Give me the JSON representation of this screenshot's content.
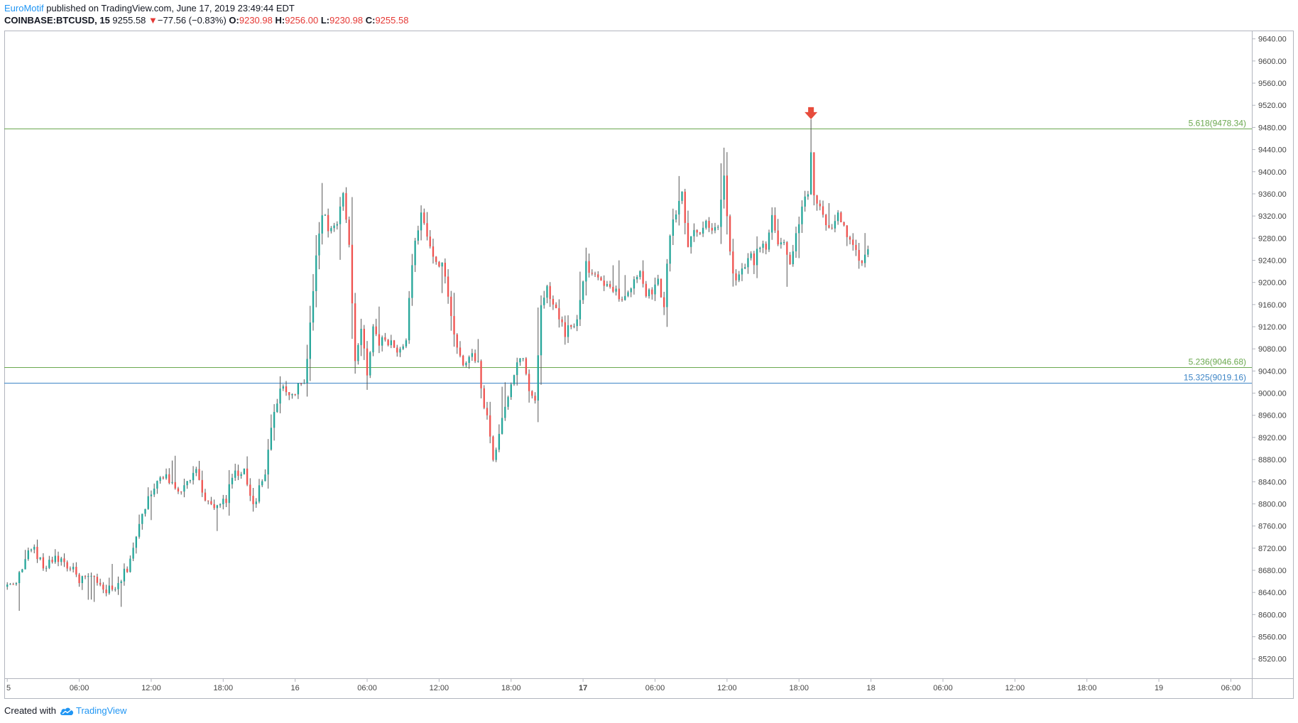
{
  "header": {
    "author": "EuroMotif",
    "published_text": "published on TradingView.com, June 17, 2019 23:49:44 EDT",
    "symbol": "COINBASE:BTCUSD, 15",
    "last_price": "9255.58",
    "change_arrow": "▼",
    "change": "−77.56 (−0.83%)",
    "ohlc": [
      {
        "label": "O:",
        "value": "9230.98"
      },
      {
        "label": "H:",
        "value": "9256.00"
      },
      {
        "label": "L:",
        "value": "9230.98"
      },
      {
        "label": "C:",
        "value": "9255.58"
      }
    ]
  },
  "footer": {
    "created_with": "Created with",
    "brand": "TradingView"
  },
  "colors": {
    "up": "#26a69a",
    "down": "#ef5350",
    "fib_green": "#6aa84f",
    "fib_blue": "#3d85c6",
    "marker": "#e74c3c",
    "grid_border": "#b2b5be",
    "axis_text": "#444444"
  },
  "chart_data": {
    "type": "candlestick",
    "interval_minutes": 15,
    "y_ticks": [
      "8520.00",
      "8560.00",
      "8600.00",
      "8640.00",
      "8680.00",
      "8720.00",
      "8760.00",
      "8800.00",
      "8840.00",
      "8880.00",
      "8920.00",
      "8960.00",
      "9000.00",
      "9040.00",
      "9080.00",
      "9120.00",
      "9160.00",
      "9200.00",
      "9240.00",
      "9280.00",
      "9320.00",
      "9360.00",
      "9400.00",
      "9440.00",
      "9480.00",
      "9520.00",
      "9560.00",
      "9600.00",
      "9640.00"
    ],
    "ylim": [
      8485,
      9655
    ],
    "x_ticks": [
      {
        "label": "5",
        "bar": 0,
        "bold": false
      },
      {
        "label": "06:00",
        "bar": 24,
        "bold": false
      },
      {
        "label": "12:00",
        "bar": 48,
        "bold": false
      },
      {
        "label": "18:00",
        "bar": 72,
        "bold": false
      },
      {
        "label": "16",
        "bar": 96,
        "bold": false
      },
      {
        "label": "06:00",
        "bar": 120,
        "bold": false
      },
      {
        "label": "12:00",
        "bar": 144,
        "bold": false
      },
      {
        "label": "18:00",
        "bar": 168,
        "bold": false
      },
      {
        "label": "17",
        "bar": 192,
        "bold": true
      },
      {
        "label": "06:00",
        "bar": 216,
        "bold": false
      },
      {
        "label": "12:00",
        "bar": 240,
        "bold": false
      },
      {
        "label": "18:00",
        "bar": 264,
        "bold": false
      },
      {
        "label": "18",
        "bar": 288,
        "bold": false
      },
      {
        "label": "06:00",
        "bar": 312,
        "bold": false
      },
      {
        "label": "12:00",
        "bar": 336,
        "bold": false
      },
      {
        "label": "18:00",
        "bar": 360,
        "bold": false
      },
      {
        "label": "19",
        "bar": 384,
        "bold": false
      },
      {
        "label": "06:00",
        "bar": 408,
        "bold": false
      }
    ],
    "x_bar_range": [
      -1,
      415
    ],
    "fib_levels": [
      {
        "label": "5.618(9478.34)",
        "value": 9478.34,
        "color": "#6aa84f"
      },
      {
        "label": "5.236(9046.68)",
        "value": 9046.68,
        "color": "#6aa84f"
      },
      {
        "label": "15.325(9019.16)",
        "value": 9019.16,
        "color": "#3d85c6"
      }
    ],
    "marker": {
      "type": "arrow-down",
      "bar": 268,
      "value": 9505
    },
    "anchors": [
      [
        0,
        8650
      ],
      [
        4,
        8670
      ],
      [
        8,
        8725
      ],
      [
        12,
        8685
      ],
      [
        16,
        8705
      ],
      [
        20,
        8690
      ],
      [
        24,
        8665
      ],
      [
        28,
        8665
      ],
      [
        32,
        8645
      ],
      [
        36,
        8642
      ],
      [
        40,
        8685
      ],
      [
        44,
        8760
      ],
      [
        48,
        8825
      ],
      [
        50,
        8840
      ],
      [
        53,
        8860
      ],
      [
        56,
        8820
      ],
      [
        60,
        8840
      ],
      [
        63,
        8870
      ],
      [
        66,
        8800
      ],
      [
        70,
        8790
      ],
      [
        73,
        8810
      ],
      [
        76,
        8860
      ],
      [
        79,
        8855
      ],
      [
        82,
        8800
      ],
      [
        86,
        8850
      ],
      [
        88,
        8940
      ],
      [
        91,
        9010
      ],
      [
        94,
        8990
      ],
      [
        97,
        9010
      ],
      [
        99,
        9020
      ],
      [
        101,
        9120
      ],
      [
        103,
        9250
      ],
      [
        105,
        9330
      ],
      [
        107,
        9300
      ],
      [
        110,
        9300
      ],
      [
        112,
        9360
      ],
      [
        114,
        9260
      ],
      [
        116,
        9060
      ],
      [
        118,
        9120
      ],
      [
        120,
        9040
      ],
      [
        122,
        9120
      ],
      [
        124,
        9085
      ],
      [
        126,
        9100
      ],
      [
        130,
        9080
      ],
      [
        133,
        9090
      ],
      [
        135,
        9240
      ],
      [
        138,
        9320
      ],
      [
        141,
        9265
      ],
      [
        143,
        9240
      ],
      [
        145,
        9230
      ],
      [
        147,
        9180
      ],
      [
        150,
        9080
      ],
      [
        152,
        9050
      ],
      [
        155,
        9080
      ],
      [
        157,
        9050
      ],
      [
        158,
        9000
      ],
      [
        160,
        8960
      ],
      [
        162,
        8880
      ],
      [
        164,
        8920
      ],
      [
        166,
        8980
      ],
      [
        168,
        9010
      ],
      [
        170,
        9060
      ],
      [
        172,
        9060
      ],
      [
        174,
        9000
      ],
      [
        176,
        8990
      ],
      [
        178,
        9150
      ],
      [
        180,
        9190
      ],
      [
        183,
        9150
      ],
      [
        186,
        9110
      ],
      [
        188,
        9120
      ],
      [
        190,
        9130
      ],
      [
        193,
        9230
      ],
      [
        196,
        9210
      ],
      [
        198,
        9200
      ],
      [
        200,
        9190
      ],
      [
        203,
        9180
      ],
      [
        206,
        9170
      ],
      [
        208,
        9190
      ],
      [
        211,
        9220
      ],
      [
        213,
        9180
      ],
      [
        215,
        9180
      ],
      [
        217,
        9200
      ],
      [
        219,
        9160
      ],
      [
        221,
        9290
      ],
      [
        223,
        9330
      ],
      [
        225,
        9360
      ],
      [
        227,
        9270
      ],
      [
        229,
        9300
      ],
      [
        231,
        9290
      ],
      [
        233,
        9310
      ],
      [
        235,
        9290
      ],
      [
        237,
        9300
      ],
      [
        239,
        9400
      ],
      [
        241,
        9250
      ],
      [
        243,
        9200
      ],
      [
        245,
        9220
      ],
      [
        247,
        9250
      ],
      [
        249,
        9240
      ],
      [
        251,
        9270
      ],
      [
        253,
        9260
      ],
      [
        255,
        9320
      ],
      [
        257,
        9270
      ],
      [
        259,
        9280
      ],
      [
        261,
        9230
      ],
      [
        263,
        9280
      ],
      [
        265,
        9340
      ],
      [
        266,
        9350
      ],
      [
        267,
        9360
      ],
      [
        268,
        9440
      ],
      [
        269,
        9360
      ],
      [
        271,
        9330
      ],
      [
        273,
        9310
      ],
      [
        275,
        9290
      ],
      [
        277,
        9320
      ],
      [
        279,
        9300
      ],
      [
        281,
        9280
      ],
      [
        283,
        9250
      ],
      [
        285,
        9240
      ],
      [
        287,
        9260
      ]
    ]
  }
}
